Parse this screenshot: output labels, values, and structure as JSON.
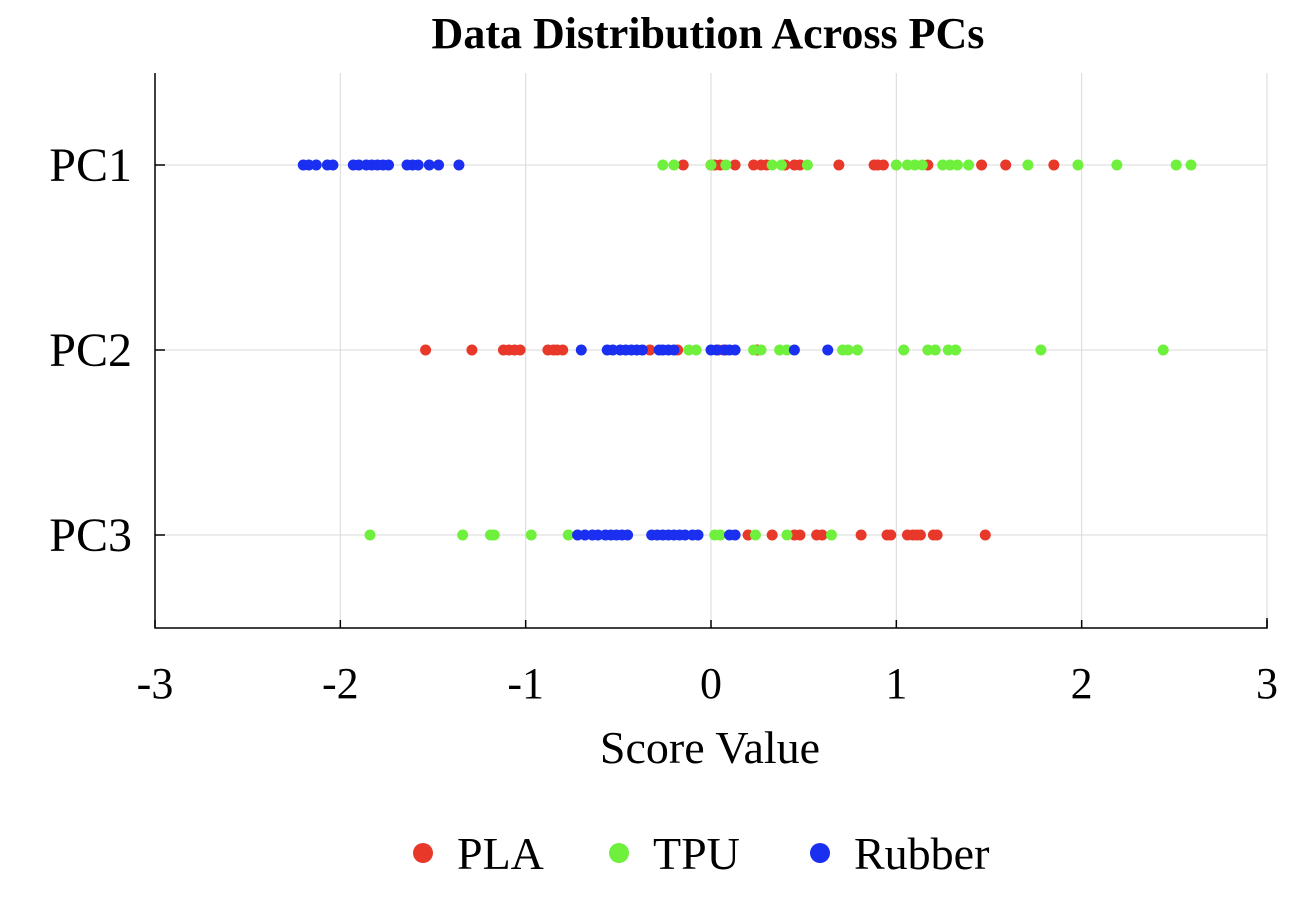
{
  "chart_data": {
    "type": "scatter",
    "title": "Data Distribution Across PCs",
    "xlabel": "Score Value",
    "ylabel": "",
    "xlim": [
      -3,
      3
    ],
    "xticks": [
      -3,
      -2,
      -1,
      0,
      1,
      2,
      3
    ],
    "xtick_labels": [
      "-3",
      "-2",
      "-1",
      "0",
      "1",
      "2",
      "3"
    ],
    "categories": [
      "PC1",
      "PC2",
      "PC3"
    ],
    "grid": true,
    "legend_position": "bottom",
    "series": [
      {
        "name": "PLA",
        "color": "#e8382a",
        "points": [
          {
            "pc": "PC1",
            "values": [
              -0.15,
              0.0,
              0.02,
              0.05,
              0.13,
              0.23,
              0.27,
              0.3,
              0.4,
              0.45,
              0.48,
              0.69,
              0.88,
              0.9,
              0.93,
              1.17,
              1.46,
              1.59,
              1.85
            ]
          },
          {
            "pc": "PC2",
            "values": [
              -1.54,
              -1.29,
              -1.12,
              -1.09,
              -1.06,
              -1.03,
              -0.88,
              -0.85,
              -0.83,
              -0.8,
              -0.33,
              -0.18,
              0.04,
              0.08,
              0.25
            ]
          },
          {
            "pc": "PC3",
            "values": [
              0.2,
              0.33,
              0.45,
              0.48,
              0.57,
              0.6,
              0.81,
              0.95,
              0.97,
              1.06,
              1.09,
              1.11,
              1.13,
              1.2,
              1.22,
              1.48
            ]
          }
        ]
      },
      {
        "name": "TPU",
        "color": "#6ff03c",
        "points": [
          {
            "pc": "PC1",
            "values": [
              -0.26,
              -0.2,
              0.0,
              0.08,
              0.33,
              0.38,
              0.52,
              1.0,
              1.06,
              1.1,
              1.14,
              1.25,
              1.29,
              1.33,
              1.39,
              1.71,
              1.98,
              2.19,
              2.51,
              2.59
            ]
          },
          {
            "pc": "PC2",
            "values": [
              -0.12,
              -0.08,
              0.23,
              0.27,
              0.37,
              0.41,
              0.71,
              0.74,
              0.79,
              1.04,
              1.17,
              1.21,
              1.28,
              1.32,
              1.78,
              2.44
            ]
          },
          {
            "pc": "PC3",
            "values": [
              -1.84,
              -1.34,
              -1.19,
              -1.17,
              -0.97,
              -0.77,
              0.02,
              0.05,
              0.24,
              0.41,
              0.65
            ]
          }
        ]
      },
      {
        "name": "Rubber",
        "color": "#1a2ff0",
        "points": [
          {
            "pc": "PC1",
            "values": [
              -2.2,
              -2.17,
              -2.13,
              -2.07,
              -2.04,
              -1.93,
              -1.9,
              -1.86,
              -1.83,
              -1.8,
              -1.77,
              -1.74,
              -1.64,
              -1.61,
              -1.58,
              -1.52,
              -1.47,
              -1.36
            ]
          },
          {
            "pc": "PC2",
            "values": [
              -0.7,
              -0.56,
              -0.53,
              -0.49,
              -0.46,
              -0.43,
              -0.4,
              -0.37,
              -0.28,
              -0.26,
              -0.23,
              -0.2,
              0.0,
              0.03,
              0.07,
              0.1,
              0.13,
              0.45,
              0.63
            ]
          },
          {
            "pc": "PC3",
            "values": [
              -0.72,
              -0.68,
              -0.64,
              -0.61,
              -0.57,
              -0.54,
              -0.51,
              -0.48,
              -0.45,
              -0.32,
              -0.29,
              -0.26,
              -0.23,
              -0.2,
              -0.17,
              -0.14,
              -0.1,
              -0.07,
              0.1,
              0.13
            ]
          }
        ]
      }
    ]
  }
}
